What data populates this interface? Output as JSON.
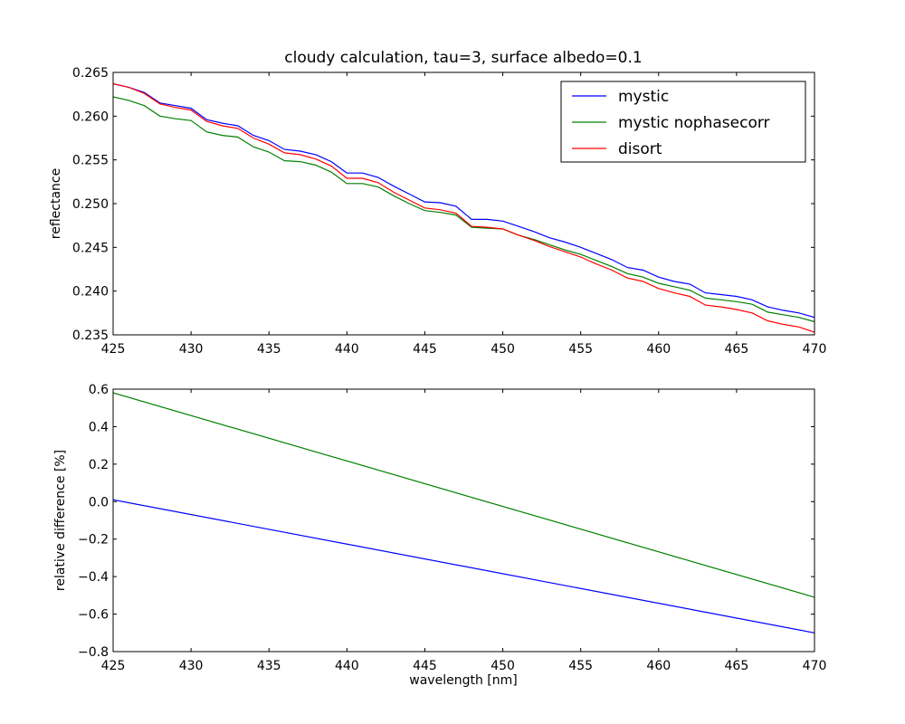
{
  "chart_data": [
    {
      "type": "line",
      "title": "cloudy calculation, tau=3, surface albedo=0.1",
      "xlabel": "",
      "ylabel": "reflectance",
      "xlim": [
        425,
        470
      ],
      "ylim": [
        0.235,
        0.265
      ],
      "xticks": [
        "425",
        "430",
        "435",
        "440",
        "445",
        "450",
        "455",
        "460",
        "465",
        "470"
      ],
      "yticks": [
        "0.235",
        "0.240",
        "0.245",
        "0.250",
        "0.255",
        "0.260",
        "0.265"
      ],
      "legend_position": "top-right",
      "x": [
        425,
        426,
        427,
        428,
        429,
        430,
        431,
        432,
        433,
        434,
        435,
        436,
        437,
        438,
        439,
        440,
        441,
        442,
        443,
        444,
        445,
        446,
        447,
        448,
        449,
        450,
        451,
        452,
        453,
        454,
        455,
        456,
        457,
        458,
        459,
        460,
        461,
        462,
        463,
        464,
        465,
        466,
        467,
        468,
        469,
        470
      ],
      "series": [
        {
          "name": "mystic",
          "color": "#0000ff",
          "values": [
            0.2637,
            0.2633,
            0.2627,
            0.2615,
            0.2612,
            0.2609,
            0.2596,
            0.2592,
            0.2589,
            0.2578,
            0.2572,
            0.2562,
            0.256,
            0.2556,
            0.2548,
            0.2535,
            0.2535,
            0.253,
            0.252,
            0.2511,
            0.2502,
            0.2501,
            0.2497,
            0.2482,
            0.2482,
            0.248,
            0.2474,
            0.2468,
            0.2461,
            0.2456,
            0.245,
            0.2443,
            0.2436,
            0.2427,
            0.2424,
            0.2416,
            0.2411,
            0.2408,
            0.2398,
            0.2396,
            0.2394,
            0.239,
            0.2382,
            0.2378,
            0.2375,
            0.237
          ]
        },
        {
          "name": "mystic nophasecorr",
          "color": "#008000",
          "values": [
            0.2622,
            0.2618,
            0.2612,
            0.26,
            0.2597,
            0.2595,
            0.2582,
            0.2578,
            0.2576,
            0.2565,
            0.2559,
            0.2549,
            0.2548,
            0.2544,
            0.2536,
            0.2523,
            0.2523,
            0.2519,
            0.2509,
            0.25,
            0.2492,
            0.249,
            0.2487,
            0.2473,
            0.2472,
            0.2471,
            0.2464,
            0.2459,
            0.2453,
            0.2447,
            0.2442,
            0.2435,
            0.2428,
            0.242,
            0.2416,
            0.2409,
            0.2405,
            0.2401,
            0.2392,
            0.239,
            0.2388,
            0.2385,
            0.2376,
            0.2373,
            0.237,
            0.2365
          ]
        },
        {
          "name": "disort",
          "color": "#ff0000",
          "values": [
            0.2637,
            0.2633,
            0.2626,
            0.2614,
            0.261,
            0.2607,
            0.2594,
            0.2589,
            0.2586,
            0.2575,
            0.2568,
            0.2558,
            0.2556,
            0.2551,
            0.2543,
            0.2529,
            0.2529,
            0.2524,
            0.2513,
            0.2504,
            0.2495,
            0.2493,
            0.2489,
            0.2474,
            0.2473,
            0.2471,
            0.2464,
            0.2458,
            0.2451,
            0.2445,
            0.2439,
            0.2431,
            0.2424,
            0.2415,
            0.2411,
            0.2403,
            0.2398,
            0.2394,
            0.2384,
            0.2382,
            0.2379,
            0.2375,
            0.2366,
            0.2362,
            0.2359,
            0.2353
          ]
        }
      ]
    },
    {
      "type": "line",
      "title": "",
      "xlabel": "wavelength [nm]",
      "ylabel": "relative difference [%]",
      "xlim": [
        425,
        470
      ],
      "ylim": [
        -0.8,
        0.6
      ],
      "xticks": [
        "425",
        "430",
        "435",
        "440",
        "445",
        "450",
        "455",
        "460",
        "465",
        "470"
      ],
      "yticks": [
        "−0.8",
        "−0.6",
        "−0.4",
        "−0.2",
        "0.0",
        "0.2",
        "0.4",
        "0.6"
      ],
      "x": [
        425,
        470
      ],
      "series": [
        {
          "name": "mystic",
          "color": "#0000ff",
          "values": [
            0.01,
            -0.7
          ]
        },
        {
          "name": "mystic nophasecorr",
          "color": "#008000",
          "values": [
            0.58,
            -0.51
          ]
        }
      ]
    }
  ]
}
